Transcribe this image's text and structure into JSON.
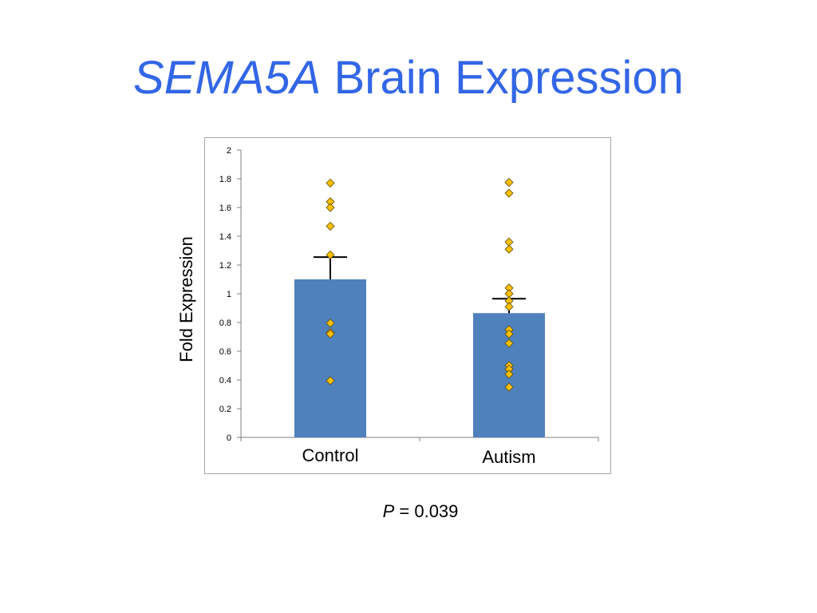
{
  "slide": {
    "title_italic": "SEMA5A",
    "title_rest": "Brain Expression",
    "p_symbol": "P",
    "p_rest": "= 0.039"
  },
  "colors": {
    "title": "#3366e6",
    "bar": "#4f81bd",
    "point_fill": "#ffc000",
    "point_stroke": "#5a4a00",
    "axis": "#7f7f7f",
    "error_bar": "#000000"
  },
  "chart_data": {
    "type": "bar",
    "categories": [
      "Control",
      "Autism"
    ],
    "values": [
      1.1,
      0.865
    ],
    "error_upper": [
      1.255,
      0.965
    ],
    "points": [
      [
        1.77,
        1.64,
        1.6,
        1.47,
        1.27,
        0.795,
        0.73,
        0.72,
        0.395
      ],
      [
        1.775,
        1.7,
        1.36,
        1.31,
        1.04,
        1.0,
        0.95,
        0.91,
        0.75,
        0.72,
        0.655,
        0.5,
        0.475,
        0.44,
        0.35
      ]
    ],
    "ylabel": "Fold Expression",
    "ylim": [
      0,
      2
    ],
    "yticks": [
      "0",
      "0.2",
      "0.4",
      "0.6",
      "0.8",
      "1",
      "1.2",
      "1.4",
      "1.6",
      "1.8",
      "2"
    ],
    "grid": false
  }
}
